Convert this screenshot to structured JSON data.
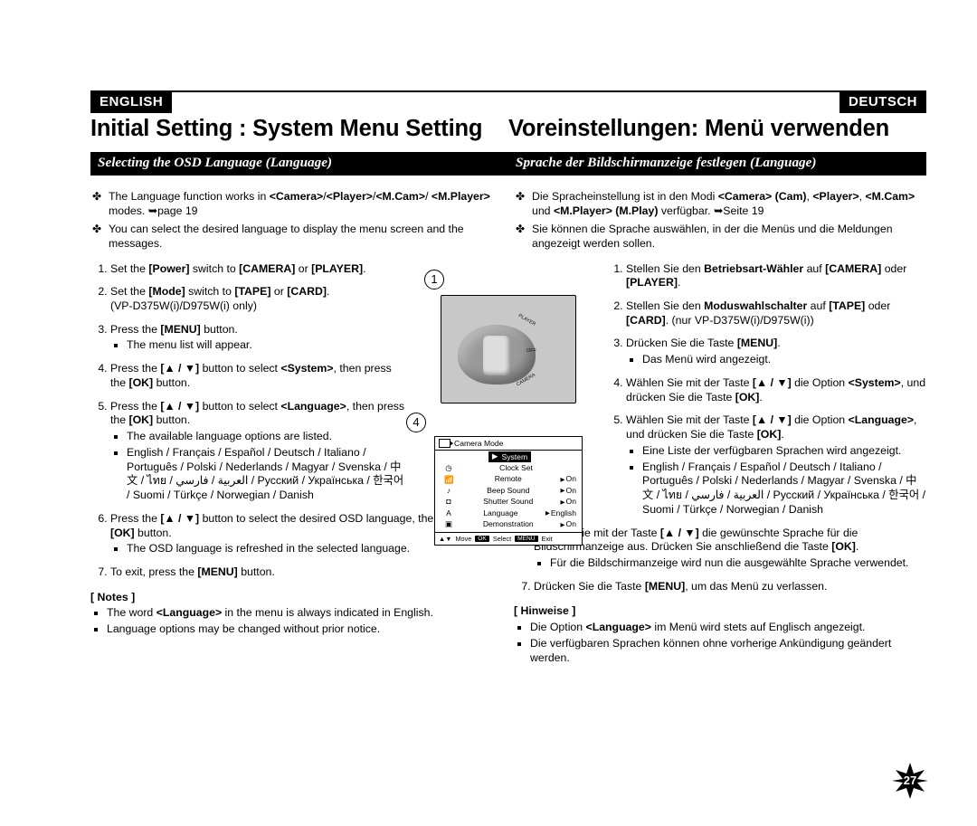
{
  "lang_tabs": {
    "left": "ENGLISH",
    "right": "DEUTSCH"
  },
  "titles": {
    "left": "Initial Setting : System Menu Setting",
    "right": "Voreinstellungen: Menü verwenden"
  },
  "subtitles": {
    "left": "Selecting the OSD Language (Language)",
    "right": "Sprache der Bildschirmanzeige festlegen (Language)"
  },
  "en": {
    "intro1": "The Language function works in <Camera>/<Player>/<M.Cam>/ <M.Player> modes. ➥page 19",
    "intro2": "You can select the desired language to display the menu screen and the messages.",
    "step1": "Set the Power switch to [CAMERA] or [PLAYER].",
    "step2a": "Set the [Mode] switch to [TAPE] or [CARD].",
    "step2b": "(VP-D375W(i)/D975W(i) only)",
    "step3a": "Press the [MENU] button.",
    "step3b": "The menu list will appear.",
    "step4a": "Press the [▲ / ▼] button to select <System>, then press the [OK] button.",
    "step5a": "Press the [▲ / ▼] button to select <Language>, then press the [OK] button.",
    "step5b": "The available language options are listed.",
    "step5c": "English / Français / Español / Deutsch / Italiano / Português / Polski / Nederlands / Magyar / Svenska / 中文 / ไทย / العربية / فارسي / Русский / Українська / 한국어 / Suomi / Türkçe / Norwegian / Danish",
    "step6a": "Press the [▲ / ▼] button to select the desired OSD language, then press the [OK] button.",
    "step6b": "The OSD language is refreshed in the selected language.",
    "step7": "To exit, press the [MENU] button.",
    "notes_h": "[ Notes ]",
    "note1": "The word <Language> in the menu is always indicated in English.",
    "note2": "Language options may be changed without prior notice."
  },
  "de": {
    "intro1": "Die Spracheinstellung ist in den Modi <Camera> (Cam), <Player>, <M.Cam> und <M.Player> (M.Play) verfügbar. ➥Seite 19",
    "intro2": "Sie können die Sprache auswählen, in der die Menüs und die Meldungen angezeigt werden sollen.",
    "step1": "Stellen Sie den Betriebsart-Wähler auf [CAMERA] oder [PLAYER].",
    "step2": "Stellen Sie den Moduswahlschalter auf [TAPE] oder [CARD]. (nur VP-D375W(i)/D975W(i))",
    "step3a": "Drücken Sie die Taste [MENU].",
    "step3b": "Das Menü wird angezeigt.",
    "step4": "Wählen Sie mit der Taste [▲ / ▼] die Option <System>, und drücken Sie die Taste [OK].",
    "step5a": "Wählen Sie mit der Taste [▲ / ▼] die Option <Language>, und drücken Sie die Taste [OK].",
    "step5b": "Eine Liste der verfügbaren Sprachen wird angezeigt.",
    "step5c": "English / Français / Español / Deutsch / Italiano / Português / Polski / Nederlands / Magyar / Svenska / 中文 / ไทย / العربية / فارسي / Русский / Українська / 한국어 / Suomi / Türkçe / Norwegian / Danish",
    "step6a": "Wählen Sie mit der Taste [▲ / ▼] die gewünschte Sprache für die Bildschirmanzeige aus. Drücken Sie anschließend die Taste [OK].",
    "step6b": "Für die Bildschirmanzeige wird nun die ausgewählte Sprache verwendet.",
    "step7": "Drücken Sie die Taste [MENU], um das Menü zu verlassen.",
    "notes_h": "[ Hinweise ]",
    "note1": "Die Option <Language> im Menü wird stets auf Englisch angezeigt.",
    "note2": "Die verfügbaren Sprachen können ohne vorherige Ankündigung geändert werden."
  },
  "fig": {
    "num1": "1",
    "num4": "4",
    "dial_player": "PLAYER",
    "dial_off": "OFF",
    "dial_camera": "CAMERA",
    "osd_title": "Camera Mode",
    "osd_system": "System",
    "rows": [
      {
        "icon": "◷",
        "label": "Clock Set",
        "val": ""
      },
      {
        "icon": "📶",
        "label": "Remote",
        "val": "On"
      },
      {
        "icon": "♪",
        "label": "Beep Sound",
        "val": "On"
      },
      {
        "icon": "◘",
        "label": "Shutter Sound",
        "val": "On"
      },
      {
        "icon": "A",
        "label": "Language",
        "val": "English"
      },
      {
        "icon": "▣",
        "label": "Demonstration",
        "val": "On"
      }
    ],
    "foot_move": "Move",
    "foot_ok": "OK",
    "foot_select": "Select",
    "foot_menu": "MENU",
    "foot_exit": "Exit"
  },
  "page_number": "27"
}
